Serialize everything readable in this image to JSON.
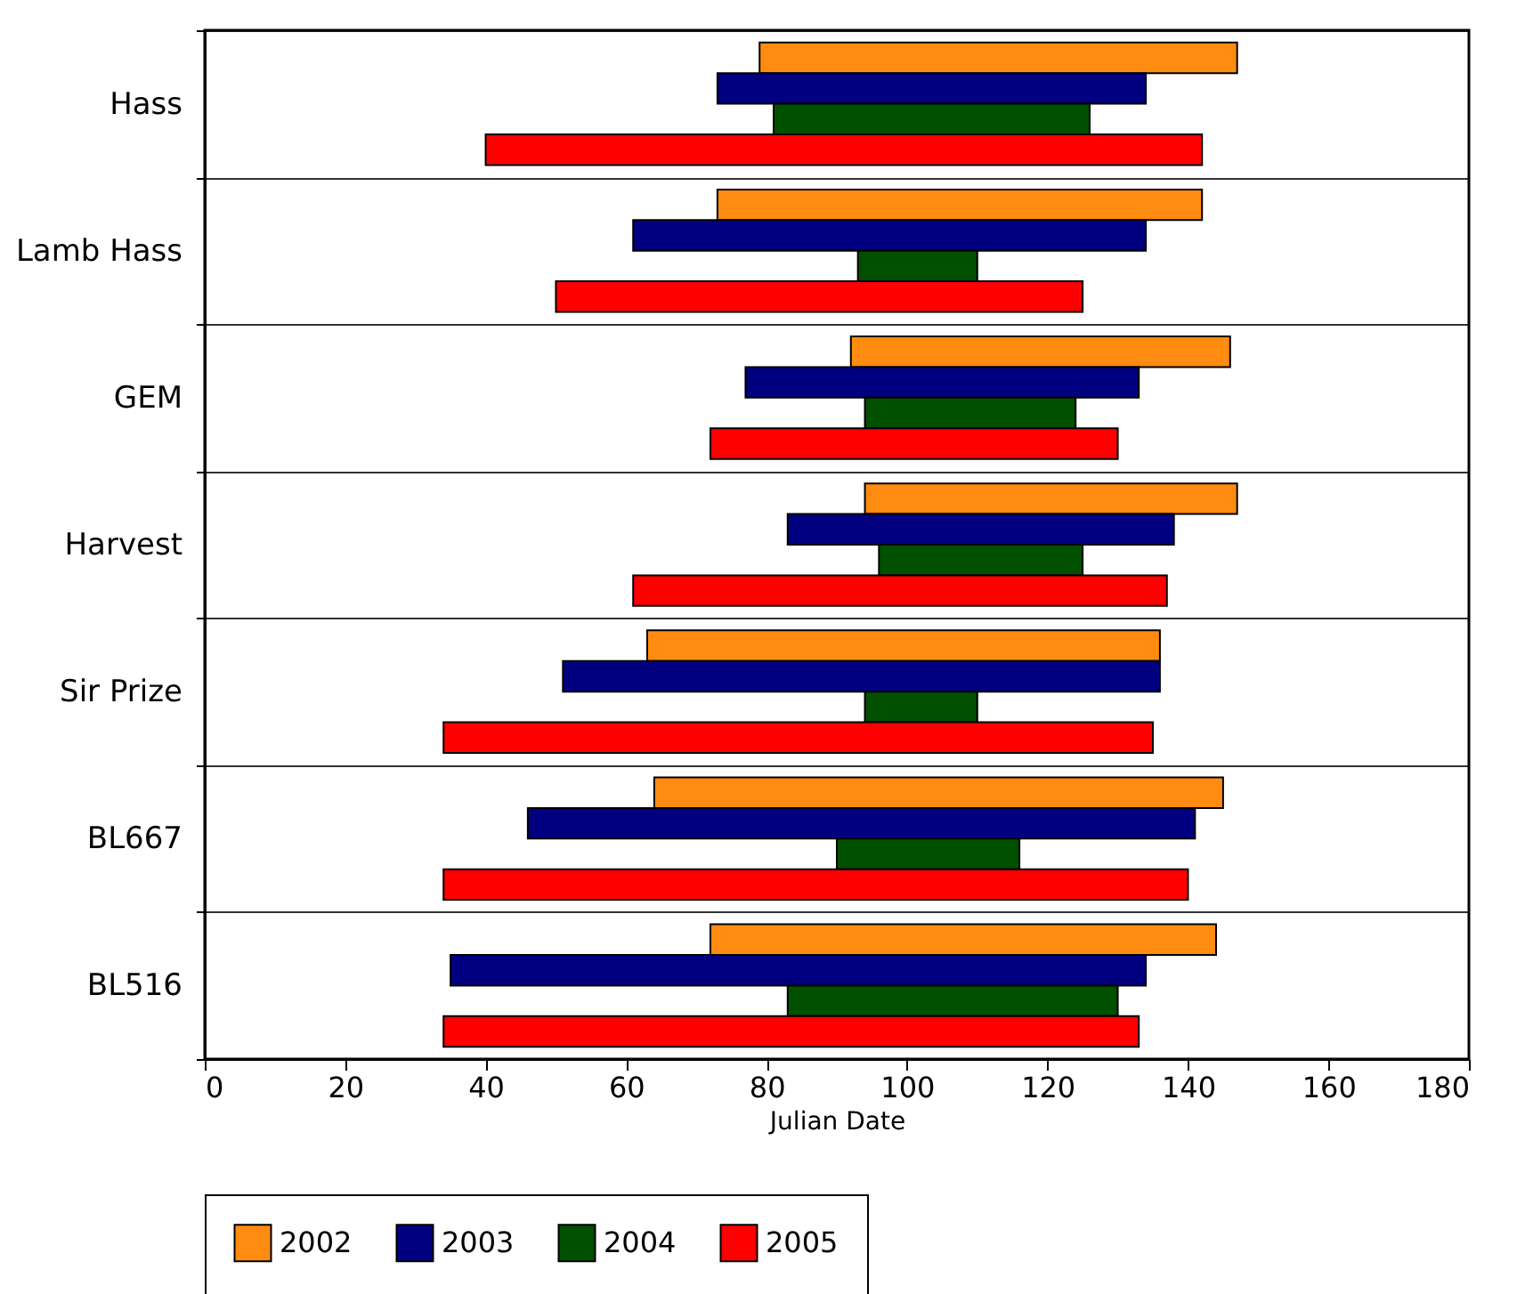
{
  "chart_data": {
    "type": "bar",
    "orientation": "horizontal",
    "xlabel": "Julian Date",
    "categories": [
      "Hass",
      "Lamb Hass",
      "GEM",
      "Harvest",
      "Sir Prize",
      "BL667",
      "BL516"
    ],
    "series": [
      {
        "name": "2002",
        "color": "#ff8c10",
        "base": [
          79,
          73,
          92,
          94,
          63,
          64,
          72
        ],
        "values": [
          68,
          69,
          54,
          53,
          73,
          81,
          72
        ]
      },
      {
        "name": "2003",
        "color": "#000080",
        "base": [
          73,
          61,
          77,
          83,
          51,
          46,
          35
        ],
        "values": [
          61,
          73,
          56,
          55,
          85,
          95,
          99
        ]
      },
      {
        "name": "2004",
        "color": "#005000",
        "base": [
          81,
          93,
          94,
          96,
          94,
          90,
          83
        ],
        "values": [
          45,
          17,
          30,
          29,
          16,
          26,
          47
        ]
      },
      {
        "name": "2005",
        "color": "#ff0000",
        "base": [
          40,
          50,
          72,
          61,
          34,
          34,
          34
        ],
        "values": [
          102,
          75,
          58,
          76,
          101,
          106,
          99
        ]
      }
    ],
    "xlim": [
      0,
      180
    ],
    "xticks": [
      0,
      20,
      40,
      60,
      80,
      100,
      120,
      140,
      160,
      180
    ],
    "grid": "y",
    "legend": "bottom"
  }
}
